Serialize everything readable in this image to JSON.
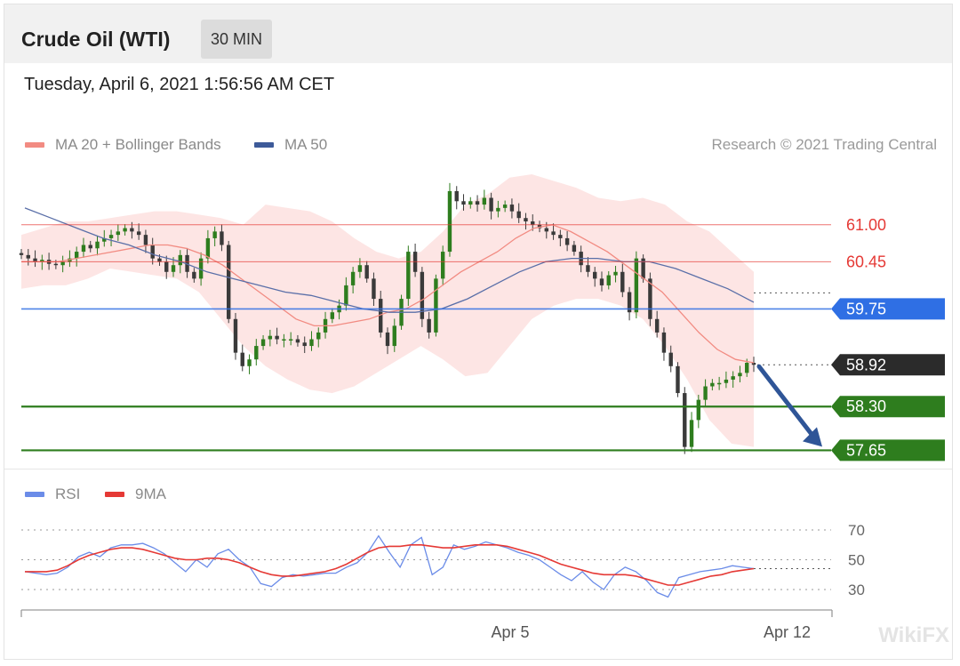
{
  "header": {
    "title": "Crude Oil (WTI)",
    "timeframe": "30 MIN"
  },
  "datetime": "Tuesday, April 6, 2021 1:56:56 AM CET",
  "legend_main": [
    {
      "label": "MA 20 + Bollinger Bands",
      "color": "#f28b82"
    },
    {
      "label": "MA 50",
      "color": "#3d5a99"
    }
  ],
  "copyright": "Research © 2021 Trading Central",
  "legend_rsi": [
    {
      "label": "RSI",
      "color": "#6b8ce8"
    },
    {
      "label": "9MA",
      "color": "#e53935"
    }
  ],
  "watermark": "WikiFX",
  "chart_data": [
    {
      "type": "candlestick",
      "name": "price",
      "ylim": [
        57.55,
        61.75
      ],
      "resistance_levels": [
        {
          "value": 61.0,
          "label": "61.00",
          "color": "#e53935"
        },
        {
          "value": 60.45,
          "label": "60.45",
          "color": "#e53935"
        }
      ],
      "pivot_level": {
        "value": 59.75,
        "label": "59.75",
        "color": "#2f6fe4"
      },
      "current_price": {
        "value": 58.92,
        "label": "58.92",
        "color": "#2b2b2b"
      },
      "support_levels": [
        {
          "value": 58.3,
          "label": "58.30",
          "color": "#2e7d1e"
        },
        {
          "value": 57.65,
          "label": "57.65",
          "color": "#2e7d1e"
        }
      ],
      "forecast_arrow": {
        "from": 58.92,
        "to": 57.65,
        "color": "#2f5597"
      },
      "close_path": [
        60.55,
        60.5,
        60.45,
        60.48,
        60.42,
        60.4,
        60.45,
        60.5,
        60.6,
        60.7,
        60.65,
        60.75,
        60.8,
        60.85,
        60.9,
        60.95,
        60.9,
        60.85,
        60.7,
        60.5,
        60.45,
        60.3,
        60.4,
        60.55,
        60.3,
        60.2,
        60.5,
        60.8,
        60.9,
        60.7,
        59.6,
        59.1,
        58.9,
        59.0,
        59.2,
        59.3,
        59.35,
        59.3,
        59.3,
        59.3,
        59.25,
        59.2,
        59.3,
        59.4,
        59.6,
        59.7,
        59.8,
        60.1,
        60.3,
        60.4,
        60.2,
        59.9,
        59.4,
        59.2,
        59.5,
        59.9,
        60.6,
        60.3,
        59.6,
        59.4,
        60.2,
        60.6,
        61.5,
        61.35,
        61.3,
        61.35,
        61.3,
        61.4,
        61.2,
        61.25,
        61.3,
        61.2,
        61.1,
        61.05,
        61.0,
        60.95,
        60.9,
        60.85,
        60.8,
        60.7,
        60.6,
        60.4,
        60.3,
        60.2,
        60.1,
        60.25,
        60.3,
        60.0,
        59.7,
        60.5,
        60.2,
        59.6,
        59.4,
        59.1,
        58.9,
        58.5,
        57.7,
        58.1,
        58.4,
        58.6,
        58.65,
        58.65,
        58.7,
        58.75,
        58.8,
        58.95,
        58.92
      ],
      "ma20_path": [
        60.45,
        60.45,
        60.45,
        60.5,
        60.55,
        60.6,
        60.65,
        60.7,
        60.7,
        60.65,
        60.55,
        60.4,
        60.2,
        60.0,
        59.8,
        59.6,
        59.5,
        59.5,
        59.55,
        59.6,
        59.7,
        59.75,
        59.9,
        60.1,
        60.3,
        60.45,
        60.6,
        60.8,
        60.95,
        61.0,
        60.9,
        60.75,
        60.6,
        60.4,
        60.2,
        60.0,
        59.7,
        59.4,
        59.15,
        59.0,
        58.95
      ],
      "ma50_path": [
        61.25,
        61.1,
        60.95,
        60.8,
        60.7,
        60.55,
        60.45,
        60.3,
        60.2,
        60.1,
        60.0,
        59.95,
        59.85,
        59.75,
        59.7,
        59.7,
        59.75,
        59.9,
        60.1,
        60.3,
        60.45,
        60.5,
        60.5,
        60.45,
        60.45,
        60.35,
        60.2,
        60.05,
        59.85
      ],
      "bollinger_upper": [
        60.85,
        60.95,
        61.05,
        61.05,
        61.1,
        61.15,
        61.2,
        61.2,
        61.15,
        61.1,
        61.0,
        61.3,
        61.25,
        61.2,
        61.05,
        60.8,
        60.6,
        60.5,
        60.6,
        60.9,
        61.3,
        61.45,
        61.7,
        61.75,
        61.65,
        61.55,
        61.4,
        61.35,
        61.4,
        61.3,
        61.05,
        60.9,
        60.6,
        60.3
      ],
      "bollinger_lower": [
        60.05,
        60.1,
        60.1,
        60.2,
        60.35,
        60.3,
        60.25,
        60.2,
        60.0,
        59.6,
        59.2,
        58.9,
        58.7,
        58.55,
        58.5,
        58.6,
        58.8,
        59.0,
        59.2,
        59.0,
        58.75,
        58.8,
        59.2,
        59.6,
        59.8,
        59.9,
        59.9,
        59.8,
        59.6,
        59.2,
        58.7,
        58.1,
        57.75,
        57.7
      ]
    },
    {
      "type": "line",
      "name": "rsi",
      "ylim": [
        20,
        80
      ],
      "reference_lines": [
        70,
        50,
        30
      ],
      "tick_labels": [
        "70",
        "50",
        "30"
      ],
      "series": [
        {
          "name": "RSI",
          "color": "#6b8ce8",
          "values": [
            42,
            41,
            40,
            41,
            45,
            52,
            55,
            52,
            58,
            60,
            60,
            61,
            58,
            54,
            48,
            42,
            50,
            45,
            54,
            57,
            50,
            45,
            34,
            32,
            38,
            40,
            39,
            40,
            41,
            41,
            45,
            48,
            55,
            66,
            55,
            45,
            60,
            65,
            40,
            45,
            60,
            57,
            59,
            62,
            60,
            58,
            55,
            53,
            50,
            45,
            40,
            36,
            42,
            35,
            30,
            40,
            45,
            42,
            36,
            28,
            25,
            38,
            40,
            42,
            43,
            44,
            46,
            45,
            44
          ]
        },
        {
          "name": "9MA",
          "color": "#e53935",
          "values": [
            42,
            42,
            42,
            43,
            46,
            50,
            53,
            55,
            57,
            58,
            58,
            57,
            55,
            53,
            51,
            50,
            50,
            51,
            51,
            50,
            48,
            45,
            42,
            40,
            39,
            39,
            40,
            41,
            42,
            44,
            47,
            51,
            55,
            58,
            59,
            59,
            60,
            60,
            59,
            58,
            58,
            59,
            60,
            60,
            60,
            59,
            57,
            55,
            53,
            50,
            47,
            45,
            43,
            41,
            40,
            40,
            40,
            39,
            37,
            35,
            33,
            33,
            35,
            37,
            39,
            40,
            42,
            43,
            44
          ]
        }
      ],
      "x_tick_labels": [
        "Apr 5",
        "Apr 12"
      ]
    }
  ]
}
